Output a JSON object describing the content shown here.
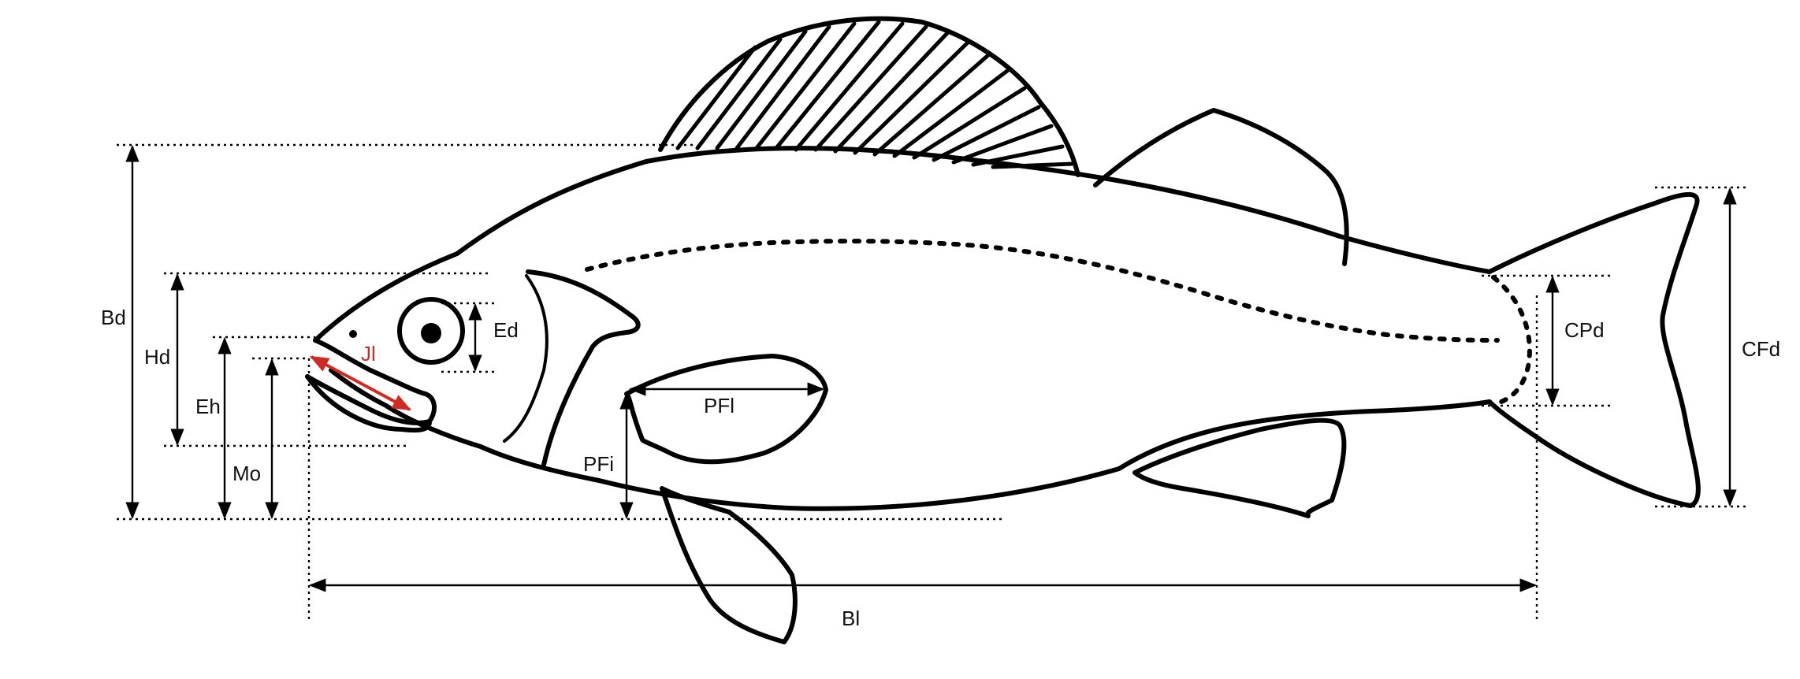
{
  "labels": {
    "bd": "Bd",
    "hd": "Hd",
    "eh": "Eh",
    "mo": "Mo",
    "jl": "Jl",
    "ed": "Ed",
    "pfl": "PFl",
    "pfi": "PFi",
    "cpd": "CPd",
    "cfd": "CFd",
    "bl": "Bl"
  },
  "colors": {
    "outline": "#000000",
    "jaw_length_arrow": "#d12a22",
    "text": "#111111"
  }
}
